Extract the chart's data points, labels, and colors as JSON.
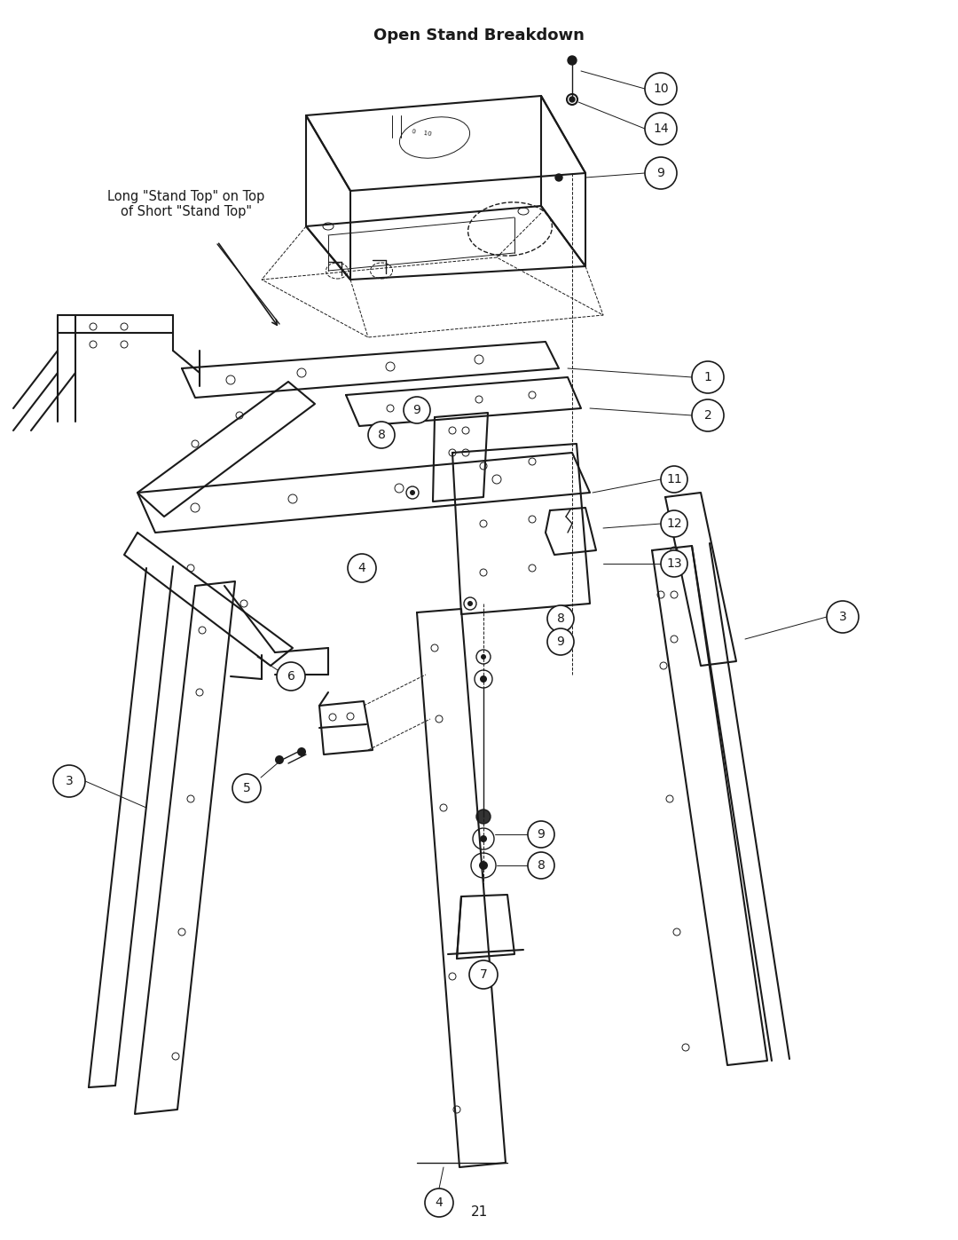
{
  "title": "Open Stand Breakdown",
  "page_number": "21",
  "background_color": "#ffffff",
  "line_color": "#1a1a1a",
  "annotation_label": "Long \"Stand Top\" on Top\nof Short \"Stand Top\"",
  "title_fontsize": 13,
  "page_fontsize": 11,
  "annotation_fontsize": 10.5,
  "figwidth": 10.8,
  "figheight": 13.97,
  "dpi": 100
}
